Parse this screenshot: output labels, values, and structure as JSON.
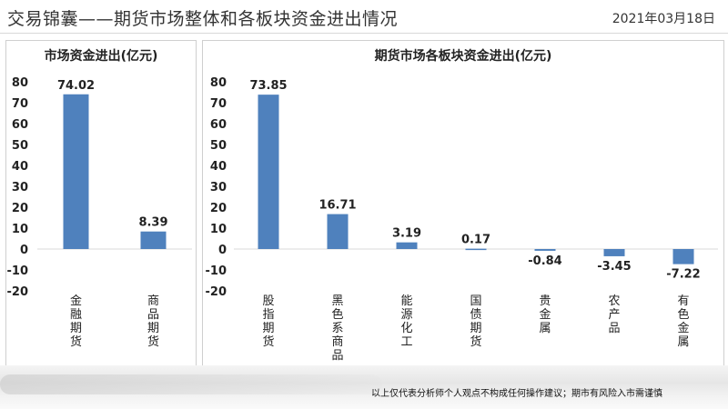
{
  "header": {
    "title": "交易锦囊——期货市场整体和各板块资金进出情况",
    "date": "2021年03月18日"
  },
  "footer": {
    "disclaimer": "以上仅代表分析师个人观点不构成任何操作建议；期市有风险入市需谨慎"
  },
  "colors": {
    "bar": "#4f81bd"
  },
  "chart_data": [
    {
      "type": "bar",
      "title": "市场资金进出(亿元)",
      "categories": [
        "金融期货",
        "商品期货"
      ],
      "values": [
        74.02,
        8.39
      ],
      "value_labels": [
        "74.02",
        "8.39"
      ],
      "ylim": [
        -20,
        80
      ],
      "yticks": [
        80,
        70,
        60,
        50,
        40,
        30,
        20,
        10,
        0,
        -10,
        -20
      ],
      "xlabel": "",
      "ylabel": "",
      "grid": false
    },
    {
      "type": "bar",
      "title": "期货市场各板块资金进出(亿元)",
      "categories": [
        "股指期货",
        "黑色系商品",
        "能源化工",
        "国债期货",
        "贵金属",
        "农产品",
        "有色金属"
      ],
      "values": [
        73.85,
        16.71,
        3.19,
        0.17,
        -0.84,
        -3.45,
        -7.22
      ],
      "value_labels": [
        "73.85",
        "16.71",
        "3.19",
        "0.17",
        "-0.84",
        "-3.45",
        "-7.22"
      ],
      "ylim": [
        -20,
        80
      ],
      "yticks": [
        80,
        70,
        60,
        50,
        40,
        30,
        20,
        10,
        0,
        -10,
        -20
      ],
      "xlabel": "",
      "ylabel": "",
      "grid": false
    }
  ]
}
